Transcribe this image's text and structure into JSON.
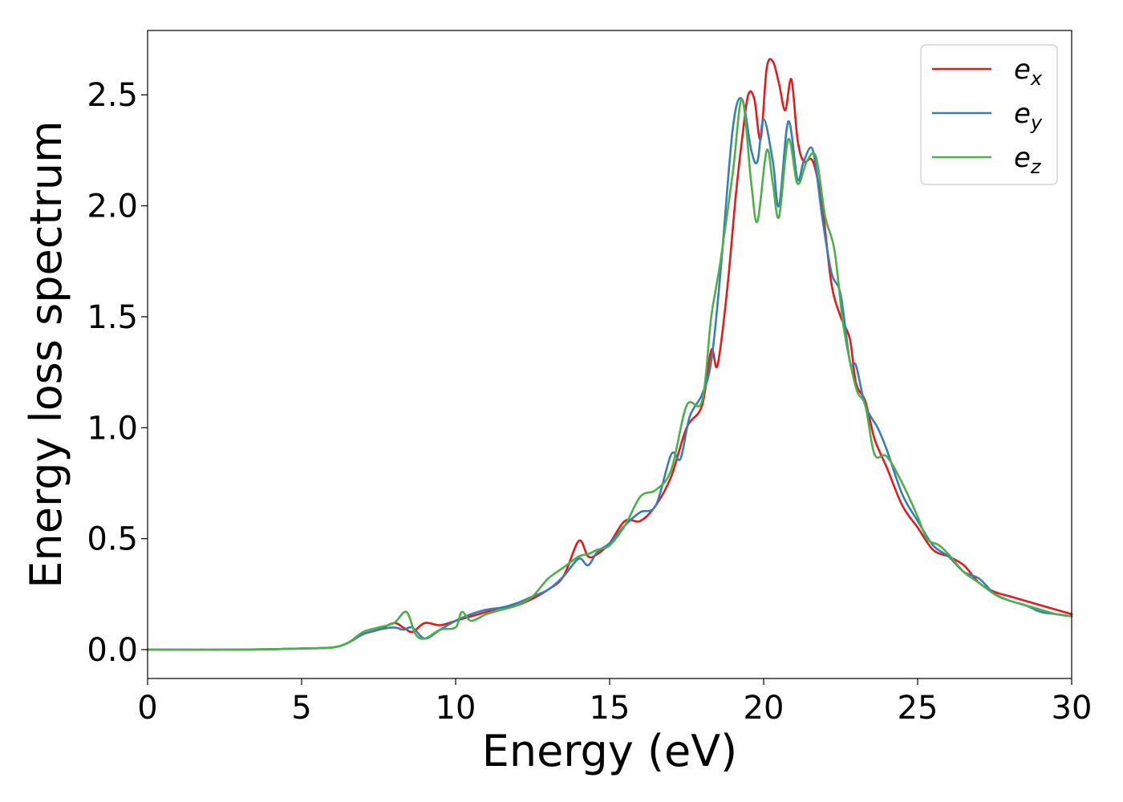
{
  "chart_data": {
    "type": "line",
    "title": "",
    "xlabel": "Energy (eV)",
    "ylabel": "Energy loss spectrum",
    "xlim": [
      0,
      30
    ],
    "ylim": [
      -0.13,
      2.79
    ],
    "xticks": [
      0,
      5,
      10,
      15,
      20,
      25,
      30
    ],
    "xtick_labels": [
      "0",
      "5",
      "10",
      "15",
      "20",
      "25",
      "30"
    ],
    "yticks": [
      0.0,
      0.5,
      1.0,
      1.5,
      2.0,
      2.5
    ],
    "ytick_labels": [
      "0.0",
      "0.5",
      "1.0",
      "1.5",
      "2.0",
      "2.5"
    ],
    "grid": false,
    "legend_position": "top-right",
    "series": [
      {
        "name": "e_x",
        "legend_base": "e",
        "legend_sub": "x",
        "color": "#e41a1c",
        "points": [
          [
            0,
            0
          ],
          [
            3,
            0
          ],
          [
            5,
            0.005
          ],
          [
            6,
            0.01
          ],
          [
            6.5,
            0.03
          ],
          [
            7,
            0.07
          ],
          [
            7.5,
            0.09
          ],
          [
            8,
            0.12
          ],
          [
            8.3,
            0.1
          ],
          [
            8.6,
            0.08
          ],
          [
            9,
            0.12
          ],
          [
            9.5,
            0.11
          ],
          [
            10,
            0.13
          ],
          [
            10.5,
            0.15
          ],
          [
            11,
            0.17
          ],
          [
            11.5,
            0.19
          ],
          [
            12,
            0.2
          ],
          [
            12.5,
            0.23
          ],
          [
            13,
            0.27
          ],
          [
            13.5,
            0.33
          ],
          [
            14,
            0.49
          ],
          [
            14.3,
            0.42
          ],
          [
            14.6,
            0.43
          ],
          [
            15,
            0.48
          ],
          [
            15.5,
            0.58
          ],
          [
            16,
            0.58
          ],
          [
            16.5,
            0.65
          ],
          [
            17,
            0.78
          ],
          [
            17.5,
            1.0
          ],
          [
            18,
            1.1
          ],
          [
            18.3,
            1.35
          ],
          [
            18.5,
            1.28
          ],
          [
            18.8,
            1.6
          ],
          [
            19.1,
            2.05
          ],
          [
            19.3,
            2.3
          ],
          [
            19.5,
            2.5
          ],
          [
            19.7,
            2.48
          ],
          [
            19.9,
            2.3
          ],
          [
            20.1,
            2.62
          ],
          [
            20.3,
            2.65
          ],
          [
            20.5,
            2.55
          ],
          [
            20.7,
            2.43
          ],
          [
            20.9,
            2.57
          ],
          [
            21.1,
            2.3
          ],
          [
            21.3,
            2.2
          ],
          [
            21.6,
            2.2
          ],
          [
            21.9,
            2.0
          ],
          [
            22.2,
            1.65
          ],
          [
            22.5,
            1.5
          ],
          [
            22.8,
            1.4
          ],
          [
            23,
            1.2
          ],
          [
            23.3,
            1.12
          ],
          [
            23.6,
            0.95
          ],
          [
            24,
            0.82
          ],
          [
            24.5,
            0.65
          ],
          [
            25,
            0.55
          ],
          [
            25.5,
            0.45
          ],
          [
            26,
            0.42
          ],
          [
            26.5,
            0.38
          ],
          [
            27,
            0.3
          ],
          [
            27.5,
            0.26
          ],
          [
            28,
            0.24
          ],
          [
            28.5,
            0.22
          ],
          [
            29,
            0.2
          ],
          [
            29.5,
            0.18
          ],
          [
            30,
            0.16
          ]
        ]
      },
      {
        "name": "e_y",
        "legend_base": "e",
        "legend_sub": "y",
        "color": "#377eb8",
        "points": [
          [
            0,
            0
          ],
          [
            3,
            0
          ],
          [
            5,
            0.005
          ],
          [
            6,
            0.01
          ],
          [
            6.5,
            0.03
          ],
          [
            7,
            0.07
          ],
          [
            7.5,
            0.09
          ],
          [
            8,
            0.1
          ],
          [
            8.3,
            0.09
          ],
          [
            8.6,
            0.1
          ],
          [
            9,
            0.05
          ],
          [
            9.5,
            0.09
          ],
          [
            10,
            0.13
          ],
          [
            10.5,
            0.16
          ],
          [
            11,
            0.18
          ],
          [
            11.5,
            0.19
          ],
          [
            12,
            0.21
          ],
          [
            12.5,
            0.24
          ],
          [
            13,
            0.27
          ],
          [
            13.5,
            0.33
          ],
          [
            14,
            0.41
          ],
          [
            14.3,
            0.38
          ],
          [
            14.6,
            0.44
          ],
          [
            15,
            0.48
          ],
          [
            15.5,
            0.56
          ],
          [
            16,
            0.62
          ],
          [
            16.5,
            0.65
          ],
          [
            17,
            0.88
          ],
          [
            17.3,
            0.86
          ],
          [
            17.6,
            1.05
          ],
          [
            18,
            1.15
          ],
          [
            18.3,
            1.3
          ],
          [
            18.6,
            1.7
          ],
          [
            19,
            2.35
          ],
          [
            19.3,
            2.48
          ],
          [
            19.6,
            2.25
          ],
          [
            19.8,
            2.2
          ],
          [
            20,
            2.39
          ],
          [
            20.3,
            2.2
          ],
          [
            20.5,
            2.0
          ],
          [
            20.8,
            2.38
          ],
          [
            21.1,
            2.12
          ],
          [
            21.3,
            2.2
          ],
          [
            21.6,
            2.25
          ],
          [
            21.9,
            1.95
          ],
          [
            22.2,
            1.7
          ],
          [
            22.5,
            1.6
          ],
          [
            22.8,
            1.3
          ],
          [
            23,
            1.28
          ],
          [
            23.3,
            1.1
          ],
          [
            23.7,
            1.0
          ],
          [
            24,
            0.9
          ],
          [
            24.5,
            0.7
          ],
          [
            25,
            0.58
          ],
          [
            25.5,
            0.47
          ],
          [
            26,
            0.42
          ],
          [
            26.5,
            0.35
          ],
          [
            27,
            0.32
          ],
          [
            27.5,
            0.25
          ],
          [
            28,
            0.22
          ],
          [
            28.5,
            0.2
          ],
          [
            29,
            0.17
          ],
          [
            29.5,
            0.16
          ],
          [
            30,
            0.15
          ]
        ]
      },
      {
        "name": "e_z",
        "legend_base": "e",
        "legend_sub": "z",
        "color": "#4daf4a",
        "points": [
          [
            0,
            0
          ],
          [
            3,
            0
          ],
          [
            5,
            0.005
          ],
          [
            6,
            0.01
          ],
          [
            6.5,
            0.03
          ],
          [
            7,
            0.08
          ],
          [
            7.5,
            0.1
          ],
          [
            8,
            0.12
          ],
          [
            8.4,
            0.17
          ],
          [
            8.7,
            0.07
          ],
          [
            9,
            0.05
          ],
          [
            9.5,
            0.09
          ],
          [
            10,
            0.1
          ],
          [
            10.2,
            0.17
          ],
          [
            10.5,
            0.13
          ],
          [
            11,
            0.16
          ],
          [
            11.5,
            0.18
          ],
          [
            12,
            0.2
          ],
          [
            12.5,
            0.24
          ],
          [
            13,
            0.32
          ],
          [
            13.5,
            0.37
          ],
          [
            14,
            0.42
          ],
          [
            14.3,
            0.43
          ],
          [
            14.6,
            0.45
          ],
          [
            15,
            0.47
          ],
          [
            15.5,
            0.56
          ],
          [
            16,
            0.69
          ],
          [
            16.5,
            0.72
          ],
          [
            17,
            0.81
          ],
          [
            17.5,
            1.1
          ],
          [
            18,
            1.12
          ],
          [
            18.3,
            1.5
          ],
          [
            18.6,
            1.75
          ],
          [
            19,
            2.15
          ],
          [
            19.3,
            2.48
          ],
          [
            19.6,
            2.1
          ],
          [
            19.8,
            1.93
          ],
          [
            20.1,
            2.25
          ],
          [
            20.3,
            2.1
          ],
          [
            20.5,
            1.95
          ],
          [
            20.8,
            2.3
          ],
          [
            21.1,
            2.1
          ],
          [
            21.4,
            2.2
          ],
          [
            21.7,
            2.22
          ],
          [
            22,
            1.95
          ],
          [
            22.3,
            1.8
          ],
          [
            22.6,
            1.45
          ],
          [
            23,
            1.18
          ],
          [
            23.3,
            1.1
          ],
          [
            23.6,
            0.88
          ],
          [
            24,
            0.87
          ],
          [
            24.5,
            0.75
          ],
          [
            25,
            0.6
          ],
          [
            25.3,
            0.5
          ],
          [
            25.7,
            0.47
          ],
          [
            26,
            0.43
          ],
          [
            26.5,
            0.35
          ],
          [
            27,
            0.3
          ],
          [
            27.5,
            0.25
          ],
          [
            28,
            0.22
          ],
          [
            28.5,
            0.2
          ],
          [
            29,
            0.18
          ],
          [
            29.5,
            0.16
          ],
          [
            30,
            0.15
          ]
        ]
      }
    ]
  }
}
